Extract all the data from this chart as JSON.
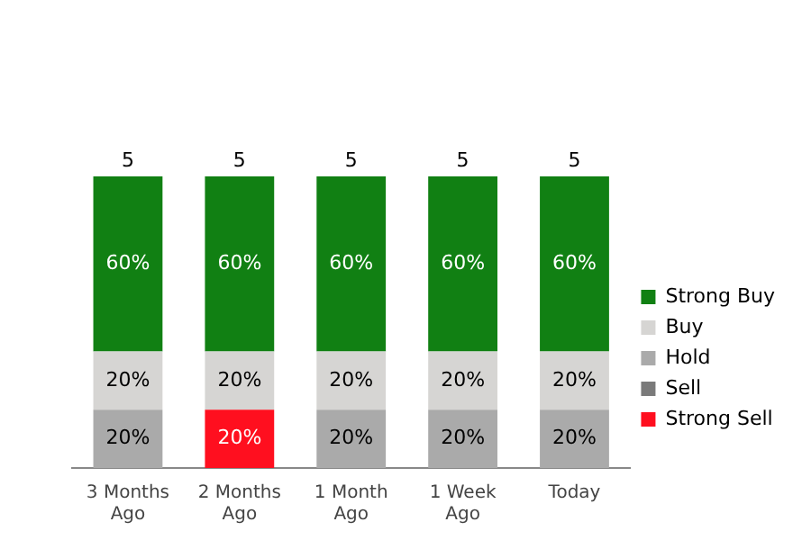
{
  "chart_data": {
    "type": "bar",
    "stacked": true,
    "categories": [
      "3 Months Ago",
      "2 Months Ago",
      "1 Month Ago",
      "1 Week Ago",
      "Today"
    ],
    "series": [
      {
        "name": "Strong Sell",
        "color": "#ff0f1f",
        "values": [
          null,
          20,
          null,
          null,
          null
        ],
        "value_labels": [
          null,
          "20%",
          null,
          null,
          null
        ]
      },
      {
        "name": "Sell",
        "color": "#7a7a7a",
        "values": [
          null,
          null,
          null,
          null,
          null
        ]
      },
      {
        "name": "Hold",
        "color": "#aaaaaa",
        "values": [
          20,
          null,
          20,
          20,
          20
        ],
        "value_labels": [
          "20%",
          null,
          "20%",
          "20%",
          "20%"
        ]
      },
      {
        "name": "Buy",
        "color": "#d6d5d3",
        "values": [
          20,
          20,
          20,
          20,
          20
        ],
        "value_labels": [
          "20%",
          "20%",
          "20%",
          "20%",
          "20%"
        ]
      },
      {
        "name": "Strong Buy",
        "color": "#118013",
        "values": [
          60,
          60,
          60,
          60,
          60
        ],
        "value_labels": [
          "60%",
          "60%",
          "60%",
          "60%",
          "60%"
        ]
      }
    ],
    "annotations": [
      {
        "text": "5",
        "x": "3 Months Ago",
        "y": 100
      },
      {
        "text": "5",
        "x": "2 Months Ago",
        "y": 100
      },
      {
        "text": "5",
        "x": "1 Month Ago",
        "y": 100
      },
      {
        "text": "5",
        "x": "1 Week Ago",
        "y": 100
      },
      {
        "text": "5",
        "x": "Today",
        "y": 100
      }
    ],
    "tick_labels": "x",
    "grid": false,
    "legend": "right"
  }
}
